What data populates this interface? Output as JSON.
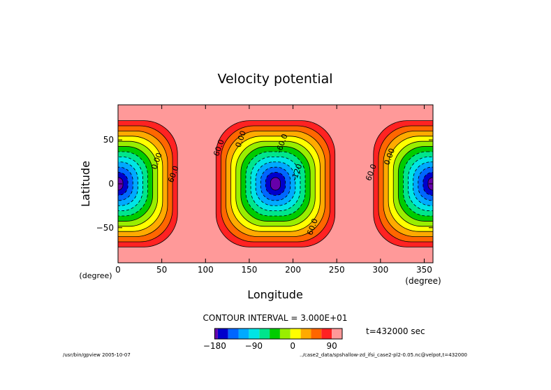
{
  "chart_data": {
    "type": "contour",
    "title": "Velocity potential",
    "xlabel": "Longitude",
    "ylabel": "Latitude",
    "x_unit": "(degree)",
    "y_unit": "(degree)",
    "xlim": [
      0,
      360
    ],
    "ylim": [
      -90,
      90
    ],
    "x_ticks": [
      0,
      50,
      100,
      150,
      200,
      250,
      300,
      350
    ],
    "y_ticks": [
      -50,
      0,
      50
    ],
    "contour_interval_text": "CONTOUR INTERVAL = 3.000E+01",
    "time_text": "t=432000 sec",
    "field_min": -180,
    "field_max": 90,
    "contour_levels": [
      -180,
      -150,
      -120,
      -90,
      -60,
      -30,
      0,
      30,
      60,
      90
    ],
    "minima": [
      {
        "lon": 0,
        "lat": 0,
        "value": -180
      },
      {
        "lon": 180,
        "lat": 0,
        "value": -180
      },
      {
        "lon": 360,
        "lat": 0,
        "value": -180
      }
    ],
    "contour_labels": [
      {
        "text": "60.0",
        "lon": 118,
        "lat": 40
      },
      {
        "text": "0.00",
        "lon": 143,
        "lat": 50
      },
      {
        "text": "-60.0",
        "lon": 190,
        "lat": 45
      },
      {
        "text": "-120",
        "lon": 207,
        "lat": 12
      },
      {
        "text": "60.0",
        "lon": 225,
        "lat": -50
      },
      {
        "text": "0.00",
        "lon": 47,
        "lat": 25
      },
      {
        "text": "60.0",
        "lon": 66,
        "lat": 10
      },
      {
        "text": "60.0",
        "lon": 292,
        "lat": 12
      },
      {
        "text": "0.00",
        "lon": 313,
        "lat": 30
      }
    ],
    "colorbar": {
      "levels": [
        -180,
        -150,
        -120,
        -90,
        -60,
        -30,
        0,
        30,
        60,
        90
      ],
      "tick_labels": [
        "-180",
        "-90",
        "0",
        "90"
      ],
      "colors": [
        "#6600aa",
        "#0000cc",
        "#0066ff",
        "#00aaff",
        "#00e5e5",
        "#00e58c",
        "#00cc00",
        "#99ee00",
        "#ffff00",
        "#ffaa00",
        "#ff6600",
        "#ff2222",
        "#ff9999"
      ]
    }
  },
  "footer": {
    "left": "/usr/bin/gpview  2005-10-07",
    "right": "../case2_data/spshallow-zd_ifsi_case2-pl2-0.05.nc@velpot,t=432000"
  }
}
